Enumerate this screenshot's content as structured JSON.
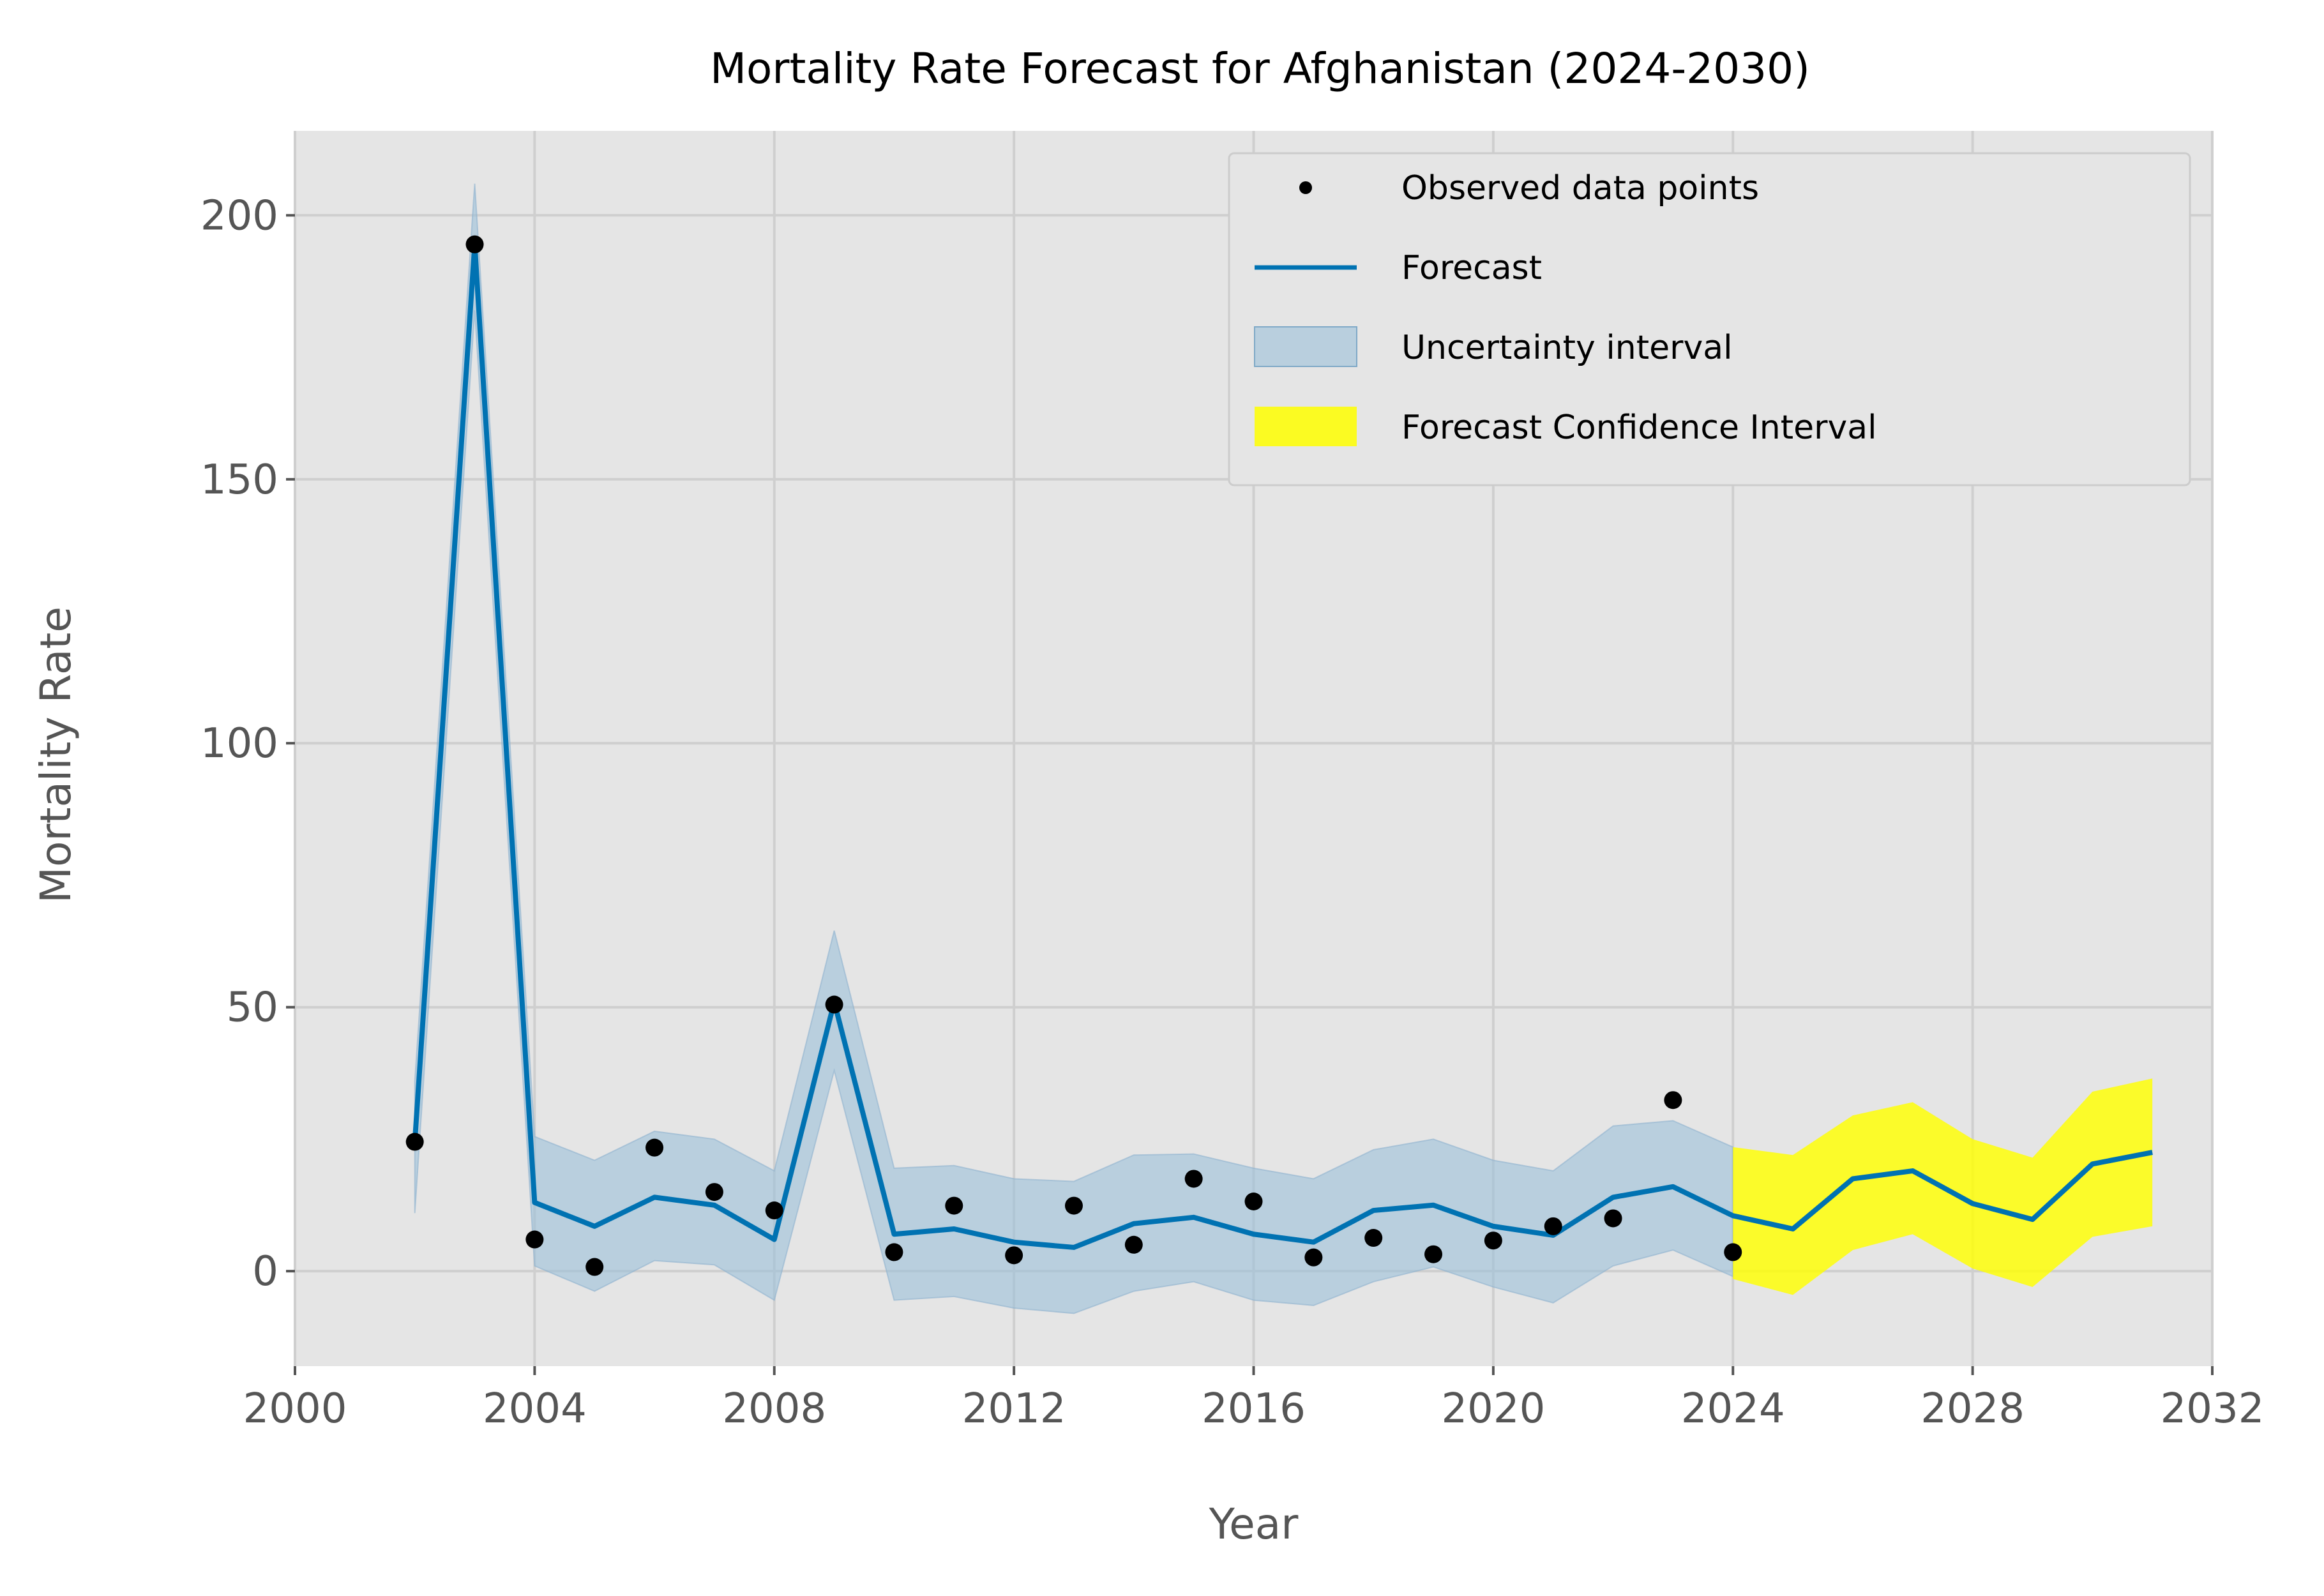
{
  "chart_data": {
    "type": "line",
    "title": "Mortality Rate Forecast for Afghanistan (2024-2030)",
    "xlabel": "Year",
    "ylabel": "Mortality Rate",
    "xlim": [
      2000,
      2032
    ],
    "ylim": [
      -18,
      216
    ],
    "x_ticks": [
      2000,
      2004,
      2008,
      2012,
      2016,
      2020,
      2024,
      2028,
      2032
    ],
    "y_ticks": [
      0,
      50,
      100,
      150,
      200
    ],
    "grid": true,
    "legend_position": "upper-right",
    "observed": {
      "name": "Observed data points",
      "x": [
        2002,
        2003,
        2004,
        2005,
        2006,
        2007,
        2008,
        2009,
        2010,
        2011,
        2012,
        2013,
        2014,
        2015,
        2016,
        2017,
        2018,
        2019,
        2020,
        2021,
        2022,
        2023,
        2024
      ],
      "y": [
        24.5,
        194.5,
        6,
        0.8,
        23.4,
        15,
        11.5,
        50.5,
        3.6,
        12.4,
        3,
        12.4,
        5,
        17.5,
        13.2,
        2.6,
        6.3,
        3.2,
        5.8,
        8.5,
        10,
        32.4,
        3.6
      ]
    },
    "forecast": {
      "name": "Forecast",
      "x": [
        2002,
        2003,
        2004,
        2005,
        2006,
        2007,
        2008,
        2009,
        2010,
        2011,
        2012,
        2013,
        2014,
        2015,
        2016,
        2017,
        2018,
        2019,
        2020,
        2021,
        2022,
        2023,
        2024,
        2025,
        2026,
        2027,
        2028,
        2029,
        2030,
        2031
      ],
      "y": [
        24.5,
        194.5,
        13,
        8.5,
        14,
        12.5,
        6,
        51,
        7,
        8,
        5.5,
        4.5,
        9,
        10.2,
        7,
        5.5,
        11.5,
        12.5,
        8.5,
        6.8,
        14,
        16,
        10.5,
        8,
        17.5,
        19,
        12.8,
        9.8,
        20.3,
        22.5
      ]
    },
    "uncertainty_interval": {
      "name": "Uncertainty interval",
      "x": [
        2002,
        2003,
        2004,
        2005,
        2006,
        2007,
        2008,
        2009,
        2010,
        2011,
        2012,
        2013,
        2014,
        2015,
        2016,
        2017,
        2018,
        2019,
        2020,
        2021,
        2022,
        2023,
        2024
      ],
      "lower": [
        11,
        182,
        1,
        -3.8,
        2,
        1.2,
        -5.5,
        38,
        -5.5,
        -4.8,
        -7,
        -8,
        -3.8,
        -2,
        -5.5,
        -6.5,
        -2,
        0.8,
        -3,
        -6,
        1,
        4,
        -1
      ],
      "upper": [
        36,
        206,
        25.5,
        21,
        26.5,
        25,
        19,
        64.5,
        19.5,
        20,
        17.5,
        17,
        22,
        22.2,
        19.5,
        17.5,
        23,
        25,
        21,
        19,
        27.5,
        28.5,
        23.5
      ]
    },
    "forecast_confidence_interval": {
      "name": "Forecast Confidence Interval",
      "x": [
        2024,
        2025,
        2026,
        2027,
        2028,
        2029,
        2030,
        2031
      ],
      "lower": [
        -1.5,
        -4.5,
        4,
        7,
        0.5,
        -3,
        6.5,
        8.5
      ],
      "upper": [
        23.5,
        22,
        29.5,
        32,
        25,
        21.5,
        34,
        36.5
      ]
    },
    "colors": {
      "figure_bg": "#ffffff",
      "axes_bg": "#e5e5e5",
      "grid": "#cfcfcf",
      "forecast_line": "#0072b2",
      "uncertainty_fill": "#9bbfd8",
      "confidence_fill": "#ffff00",
      "observed_points": "#000000"
    }
  }
}
